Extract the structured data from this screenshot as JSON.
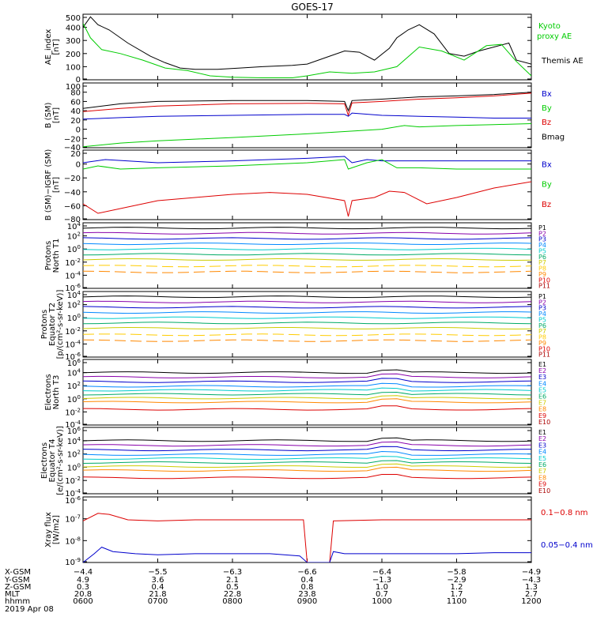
{
  "header": {
    "title": "GOES-17"
  },
  "colors": {
    "black": "#000000",
    "green": "#00cc00",
    "blue": "#0000cc",
    "red": "#dd0000",
    "cyan": "#00cccc",
    "purple": "#8800aa",
    "yellow": "#cccc00",
    "orange": "#ff8800"
  },
  "chart_data": [
    {
      "type": "line",
      "ylabel": [
        "AE_index",
        "[nT]"
      ],
      "yticks": [
        "500",
        "400",
        "300",
        "200",
        "100",
        "0"
      ],
      "ylim": [
        0,
        500
      ],
      "legend": [
        {
          "text": "Kyoto",
          "color": "#00cc00"
        },
        {
          "text": "proxy AE",
          "color": "#00cc00"
        },
        {
          "text": "Themis AE",
          "color": "#000000"
        }
      ],
      "series": [
        {
          "name": "Themis AE",
          "color": "#000000",
          "x": [
            6.0,
            6.1,
            6.2,
            6.35,
            6.6,
            6.9,
            7.1,
            7.3,
            7.5,
            7.8,
            8.1,
            8.4,
            8.8,
            9.0,
            9.3,
            9.5,
            9.7,
            9.9,
            10.1,
            10.2,
            10.35,
            10.5,
            10.7,
            10.9,
            11.1,
            11.3,
            11.5,
            11.7,
            11.8,
            12.0
          ],
          "y": [
            400,
            480,
            420,
            380,
            280,
            180,
            130,
            90,
            80,
            80,
            90,
            100,
            110,
            120,
            180,
            220,
            210,
            150,
            240,
            320,
            380,
            420,
            350,
            200,
            180,
            220,
            250,
            280,
            150,
            120
          ]
        },
        {
          "name": "Kyoto proxy AE",
          "color": "#00cc00",
          "x": [
            6.0,
            6.1,
            6.25,
            6.5,
            6.8,
            7.1,
            7.4,
            7.7,
            8.0,
            8.4,
            8.8,
            9.0,
            9.3,
            9.6,
            9.9,
            10.2,
            10.5,
            10.8,
            11.1,
            11.4,
            11.6,
            11.8,
            12.0
          ],
          "y": [
            430,
            320,
            230,
            200,
            150,
            90,
            70,
            30,
            20,
            15,
            15,
            30,
            60,
            50,
            60,
            100,
            250,
            220,
            150,
            260,
            270,
            140,
            30
          ]
        }
      ]
    },
    {
      "type": "line",
      "ylabel": [
        "B (SM)",
        "[nT]"
      ],
      "yticks": [
        "100",
        "80",
        "60",
        "40",
        "20",
        "0",
        "−20",
        "−40"
      ],
      "ylim": [
        -40,
        100
      ],
      "legend": [
        {
          "text": "Bx",
          "color": "#0000cc"
        },
        {
          "text": "By",
          "color": "#00cc00"
        },
        {
          "text": "Bz",
          "color": "#dd0000"
        },
        {
          "text": "Bmag",
          "color": "#000000"
        }
      ],
      "series": [
        {
          "name": "Bmag",
          "color": "#000000",
          "x": [
            6.0,
            6.5,
            7.0,
            8.0,
            9.0,
            9.5,
            9.55,
            9.6,
            10.0,
            10.5,
            11.0,
            11.5,
            12.0
          ],
          "y": [
            45,
            55,
            60,
            62,
            62,
            60,
            40,
            62,
            65,
            70,
            72,
            75,
            80
          ]
        },
        {
          "name": "Bz",
          "color": "#dd0000",
          "x": [
            6.0,
            6.5,
            7.0,
            8.0,
            9.0,
            9.5,
            9.55,
            9.6,
            10.0,
            10.5,
            11.0,
            11.5,
            12.0
          ],
          "y": [
            38,
            45,
            50,
            55,
            56,
            55,
            30,
            57,
            60,
            65,
            68,
            72,
            78
          ]
        },
        {
          "name": "Bx",
          "color": "#0000cc",
          "x": [
            6.0,
            6.5,
            7.0,
            8.0,
            9.0,
            9.5,
            9.55,
            9.6,
            10.0,
            10.5,
            11.0,
            11.5,
            12.0
          ],
          "y": [
            22,
            25,
            28,
            30,
            32,
            32,
            28,
            35,
            30,
            28,
            26,
            24,
            24
          ]
        },
        {
          "name": "By",
          "color": "#00cc00",
          "x": [
            6.0,
            6.5,
            7.0,
            8.0,
            9.0,
            9.5,
            10.0,
            10.3,
            10.5,
            11.0,
            11.5,
            12.0
          ],
          "y": [
            -38,
            -30,
            -25,
            -18,
            -10,
            -5,
            0,
            8,
            5,
            8,
            10,
            12
          ]
        }
      ]
    },
    {
      "type": "line",
      "ylabel": [
        "B (SM)−IGRF (SM)",
        "[nT]"
      ],
      "yticks": [
        "20",
        "0",
        "−20",
        "−40",
        "−60",
        "−80"
      ],
      "ylim": [
        -85,
        25
      ],
      "legend": [
        {
          "text": "Bx",
          "color": "#0000cc"
        },
        {
          "text": "By",
          "color": "#00cc00"
        },
        {
          "text": "Bz",
          "color": "#dd0000"
        }
      ],
      "series": [
        {
          "name": "Bx",
          "color": "#0000cc",
          "x": [
            6.0,
            6.3,
            7.0,
            8.0,
            9.0,
            9.5,
            9.6,
            9.8,
            10.0,
            10.5,
            11.0,
            12.0
          ],
          "y": [
            5,
            10,
            5,
            8,
            12,
            15,
            5,
            10,
            8,
            8,
            8,
            8
          ]
        },
        {
          "name": "By",
          "color": "#00cc00",
          "x": [
            6.0,
            6.2,
            6.5,
            7.0,
            8.0,
            9.0,
            9.5,
            9.55,
            9.8,
            10.0,
            10.2,
            10.5,
            11.0,
            12.0
          ],
          "y": [
            -5,
            0,
            -5,
            -3,
            0,
            5,
            10,
            -5,
            5,
            10,
            -3,
            -3,
            -5,
            -5
          ]
        },
        {
          "name": "Bz",
          "color": "#dd0000",
          "x": [
            6.0,
            6.2,
            6.6,
            7.0,
            7.5,
            8.0,
            8.5,
            9.0,
            9.5,
            9.55,
            9.6,
            9.9,
            10.1,
            10.3,
            10.6,
            11.0,
            11.5,
            12.0
          ],
          "y": [
            -60,
            -75,
            -65,
            -55,
            -50,
            -45,
            -42,
            -45,
            -55,
            -80,
            -55,
            -50,
            -40,
            -42,
            -60,
            -50,
            -35,
            -25
          ]
        }
      ]
    },
    {
      "type": "line",
      "ylabel": [
        "Protons",
        "North T1"
      ],
      "yticks": [
        "10^4",
        "10^2",
        "10^0",
        "10^-2",
        "10^-4",
        "10^-6"
      ],
      "ylim": [
        -6,
        4
      ],
      "legend": [
        {
          "text": "P1",
          "color": "#000000"
        },
        {
          "text": "P2",
          "color": "#8800aa"
        },
        {
          "text": "P3",
          "color": "#0000cc"
        },
        {
          "text": "P4",
          "color": "#0088ff"
        },
        {
          "text": "P5",
          "color": "#00cccc"
        },
        {
          "text": "P6",
          "color": "#00aa66"
        },
        {
          "text": "P7",
          "color": "#cccc00"
        },
        {
          "text": "P8",
          "color": "#ffcc00"
        },
        {
          "text": "P9",
          "color": "#ff8800"
        },
        {
          "text": "P10",
          "color": "#dd0000"
        },
        {
          "text": "P11",
          "color": "#aa0000"
        }
      ],
      "levels": [
        3.2,
        2.4,
        1.6,
        0.8,
        0.0,
        -0.8,
        -1.6,
        -2.6,
        -3.5
      ]
    },
    {
      "type": "line",
      "ylabel": [
        "Protons",
        "Equator T2",
        "[p/(cm²-s-sr-keV)]"
      ],
      "yticks": [
        "10^4",
        "10^2",
        "10^0",
        "10^-2",
        "10^-4",
        "10^-6"
      ],
      "ylim": [
        -6,
        4
      ],
      "legend": [
        {
          "text": "P1",
          "color": "#000000"
        },
        {
          "text": "P2",
          "color": "#8800aa"
        },
        {
          "text": "P3",
          "color": "#0000cc"
        },
        {
          "text": "P4",
          "color": "#0088ff"
        },
        {
          "text": "P5",
          "color": "#00cccc"
        },
        {
          "text": "P6",
          "color": "#00aa66"
        },
        {
          "text": "P7",
          "color": "#cccc00"
        },
        {
          "text": "P8",
          "color": "#ffcc00"
        },
        {
          "text": "P9",
          "color": "#ff8800"
        },
        {
          "text": "P10",
          "color": "#dd0000"
        },
        {
          "text": "P11",
          "color": "#aa0000"
        }
      ],
      "levels": [
        3.2,
        2.4,
        1.6,
        0.8,
        0.0,
        -0.8,
        -1.6,
        -2.6,
        -3.5
      ]
    },
    {
      "type": "line",
      "ylabel": [
        "Electrons",
        "North T3"
      ],
      "yticks": [
        "10^6",
        "10^4",
        "10^2",
        "10^0",
        "10^-2",
        "10^-4"
      ],
      "ylim": [
        -4,
        6
      ],
      "legend": [
        {
          "text": "E1",
          "color": "#000000"
        },
        {
          "text": "E2",
          "color": "#8800aa"
        },
        {
          "text": "E3",
          "color": "#0000cc"
        },
        {
          "text": "E4",
          "color": "#0088ff"
        },
        {
          "text": "E5",
          "color": "#00cccc"
        },
        {
          "text": "E6",
          "color": "#00aa66"
        },
        {
          "text": "E7",
          "color": "#cccc00"
        },
        {
          "text": "E8",
          "color": "#ff8800"
        },
        {
          "text": "E9",
          "color": "#dd0000"
        },
        {
          "text": "E10",
          "color": "#aa0000"
        }
      ],
      "levels": [
        4.0,
        3.3,
        2.6,
        1.9,
        1.3,
        0.7,
        0.1,
        -0.5,
        -1.6
      ]
    },
    {
      "type": "line",
      "ylabel": [
        "Electrons",
        "Equator T4",
        "[e/(cm²-s-sr-keV)]"
      ],
      "yticks": [
        "10^6",
        "10^4",
        "10^2",
        "10^0",
        "10^-2",
        "10^-4"
      ],
      "ylim": [
        -4,
        6
      ],
      "legend": [
        {
          "text": "E1",
          "color": "#000000"
        },
        {
          "text": "E2",
          "color": "#8800aa"
        },
        {
          "text": "E3",
          "color": "#0000cc"
        },
        {
          "text": "E4",
          "color": "#0088ff"
        },
        {
          "text": "E5",
          "color": "#00cccc"
        },
        {
          "text": "E6",
          "color": "#00aa66"
        },
        {
          "text": "E7",
          "color": "#cccc00"
        },
        {
          "text": "E8",
          "color": "#ff8800"
        },
        {
          "text": "E9",
          "color": "#dd0000"
        },
        {
          "text": "E10",
          "color": "#aa0000"
        }
      ],
      "levels": [
        4.0,
        3.3,
        2.6,
        1.9,
        1.3,
        0.7,
        0.1,
        -0.5,
        -1.6
      ]
    },
    {
      "type": "line",
      "ylabel": [
        "Xray flux",
        "[W/m2]"
      ],
      "yticks": [
        "10^-6",
        "10^-7",
        "10^-8",
        "10^-9"
      ],
      "ylim": [
        -9,
        -6
      ],
      "legend": [
        {
          "text": "0.1−0.8 nm",
          "color": "#dd0000"
        },
        {
          "text": "0.05−0.4 nm",
          "color": "#0000cc"
        }
      ],
      "series": [
        {
          "name": "0.1−0.8 nm",
          "color": "#dd0000",
          "x": [
            6.0,
            6.2,
            6.35,
            6.6,
            7.0,
            7.5,
            8.0,
            8.5,
            8.95,
            9.0,
            9.3,
            9.35,
            10.0,
            10.5,
            11.0,
            11.5,
            12.0
          ],
          "y": [
            -7.1,
            -6.75,
            -6.8,
            -7.05,
            -7.1,
            -7.05,
            -7.05,
            -7.05,
            -7.05,
            -9.0,
            -9.0,
            -7.1,
            -7.05,
            -7.05,
            -7.05,
            -7.05,
            -7.05
          ]
        },
        {
          "name": "0.05−0.4 nm",
          "color": "#0000cc",
          "x": [
            6.0,
            6.15,
            6.25,
            6.4,
            6.7,
            7.0,
            7.5,
            8.0,
            8.5,
            8.9,
            9.0,
            9.3,
            9.35,
            9.5,
            10.0,
            10.5,
            11.0,
            11.5,
            12.0
          ],
          "y": [
            -9.0,
            -8.6,
            -8.3,
            -8.5,
            -8.6,
            -8.65,
            -8.6,
            -8.6,
            -8.6,
            -8.7,
            -9.0,
            -9.0,
            -8.5,
            -8.6,
            -8.6,
            -8.6,
            -8.6,
            -8.55,
            -8.55
          ]
        }
      ]
    }
  ],
  "x_axis": {
    "xlim": [
      6.0,
      12.0
    ],
    "row_labels": [
      "X-GSM",
      "Y-GSM",
      "Z-GSM",
      "MLT",
      "hhmm"
    ],
    "columns": [
      {
        "x": 6.0,
        "values": [
          "−4.4",
          "4.9",
          "0.3",
          "20.8",
          "0600"
        ]
      },
      {
        "x": 7.0,
        "values": [
          "−5.5",
          "3.6",
          "0.4",
          "21.8",
          "0700"
        ]
      },
      {
        "x": 8.0,
        "values": [
          "−6.3",
          "2.1",
          "0.5",
          "22.8",
          "0800"
        ]
      },
      {
        "x": 9.0,
        "values": [
          "−6.6",
          "0.4",
          "0.8",
          "23.8",
          "0900"
        ]
      },
      {
        "x": 10.0,
        "values": [
          "−6.4",
          "−1.3",
          "1.0",
          "0.7",
          "1000"
        ]
      },
      {
        "x": 11.0,
        "values": [
          "−5.8",
          "−2.9",
          "1.2",
          "1.7",
          "1100"
        ]
      },
      {
        "x": 12.0,
        "values": [
          "−4.9",
          "−4.3",
          "1.3",
          "2.7",
          "1200"
        ]
      }
    ],
    "date": "2019 Apr 08"
  }
}
